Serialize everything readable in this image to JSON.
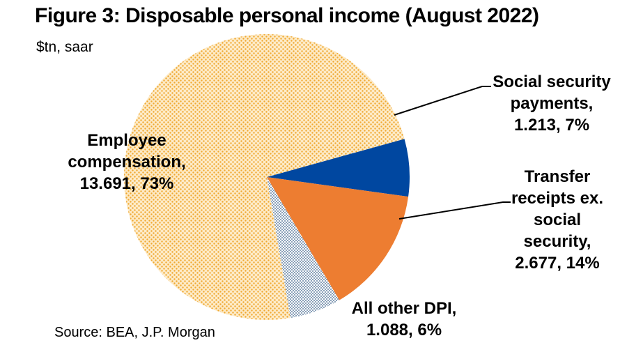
{
  "title": "Figure 3: Disposable personal income (August 2022)",
  "subtitle": "$tn, saar",
  "source": "Source: BEA, J.P. Morgan",
  "chart_data": {
    "type": "pie",
    "slices": [
      {
        "name": "Social security payments",
        "value": 1.213,
        "percent": 7,
        "label_lines": [
          "Social security",
          "payments,",
          "1.213, 7%"
        ],
        "color": "#0047a0"
      },
      {
        "name": "Transfer receipts ex. social security",
        "value": 2.677,
        "percent": 14,
        "label_lines": [
          "Transfer",
          "receipts ex.",
          "social",
          "security,",
          "2.677, 14%"
        ],
        "color": "#ed7d31"
      },
      {
        "name": "All other DPI",
        "value": 1.088,
        "percent": 6,
        "label_lines": [
          "All other DPI,",
          "1.088, 6%"
        ],
        "color": "#4f6d8f"
      },
      {
        "name": "Employee compensation",
        "value": 13.691,
        "percent": 73,
        "label_lines": [
          "Employee",
          "compensation,",
          "13.691, 73%"
        ],
        "color": "#f0a830"
      }
    ],
    "colors": {
      "background": "#ffffff",
      "leader_line": "#000000"
    }
  }
}
